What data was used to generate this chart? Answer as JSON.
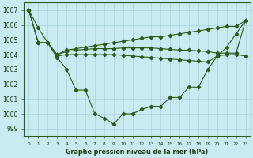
{
  "title": "Graphe pression niveau de la mer (hPa)",
  "background_color": "#c8eaf0",
  "grid_color": "#a8d4dc",
  "line_color": "#2d5a1b",
  "ylim": [
    998.5,
    1007.5
  ],
  "yticks": [
    999,
    1000,
    1001,
    1002,
    1003,
    1004,
    1005,
    1006,
    1007
  ],
  "x_labels": [
    "0",
    "1",
    "2",
    "3",
    "4",
    "5",
    "6",
    "7",
    "8",
    "9",
    "10",
    "11",
    "12",
    "13",
    "14",
    "15",
    "16",
    "17",
    "18",
    "19",
    "20",
    "21",
    "22",
    "23"
  ],
  "s1": [
    1007,
    1005.8,
    1004.8,
    1003.8,
    1003.0,
    1001.6,
    1001.6,
    1000.0,
    999.7,
    999.3,
    1000.0,
    1000.0,
    1000.3,
    1000.5,
    1000.5,
    1001.1,
    1001.1,
    1001.8,
    1001.8,
    1003.0,
    1003.9,
    1004.5,
    1005.4,
    1006.3
  ],
  "s2": [
    1007,
    1004.8,
    1004.8,
    1004.0,
    1004.3,
    1004.4,
    1004.5,
    1004.6,
    1004.7,
    1004.8,
    1004.9,
    1005.0,
    1005.1,
    1005.2,
    1005.2,
    1005.3,
    1005.4,
    1005.5,
    1005.6,
    1005.7,
    1005.8,
    1005.9,
    1005.9,
    1006.3
  ],
  "s3": [
    1007,
    1004.8,
    1004.8,
    1004.0,
    1004.2,
    1004.3,
    1004.35,
    1004.4,
    1004.4,
    1004.4,
    1004.45,
    1004.45,
    1004.45,
    1004.45,
    1004.4,
    1004.35,
    1004.3,
    1004.3,
    1004.25,
    1004.2,
    1004.1,
    1004.1,
    1004.1,
    1006.3
  ],
  "s4": [
    1007,
    1004.8,
    1004.8,
    1003.9,
    1004.0,
    1004.0,
    1004.0,
    1004.0,
    1004.0,
    1004.0,
    1003.95,
    1003.9,
    1003.85,
    1003.8,
    1003.75,
    1003.7,
    1003.65,
    1003.6,
    1003.55,
    1003.5,
    1003.9,
    1004.0,
    1004.0,
    1003.9
  ]
}
